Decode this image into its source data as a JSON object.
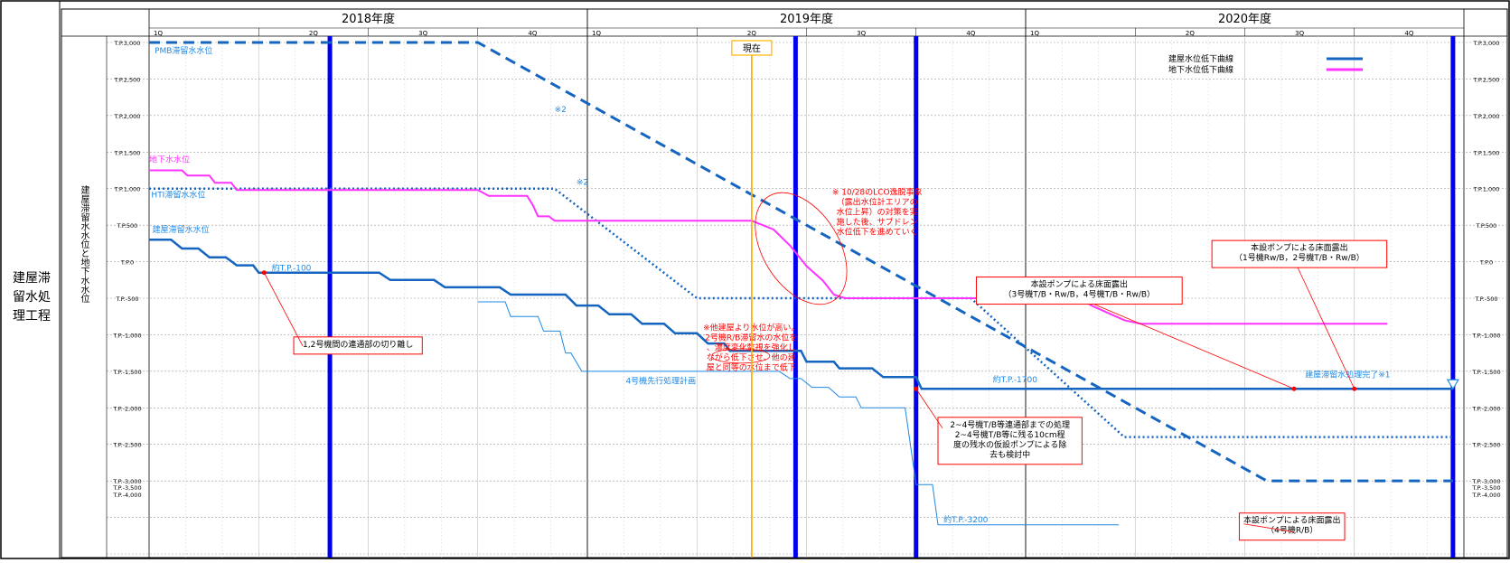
{
  "row_label_lines": [
    "建屋滞",
    "留水処",
    "理工程"
  ],
  "y_axis_title": "建屋滞留水水位と地下水水位",
  "years": [
    {
      "label": "2018年度",
      "quarters": [
        "1Q",
        "2Q",
        "3Q",
        "4Q"
      ]
    },
    {
      "label": "2019年度",
      "quarters": [
        "1Q",
        "2Q",
        "3Q",
        "4Q"
      ]
    },
    {
      "label": "2020年度",
      "quarters": [
        "1Q",
        "2Q",
        "3Q",
        "4Q"
      ]
    }
  ],
  "legend": {
    "items": [
      {
        "label": "建屋水位低下曲線",
        "color": "#1565c0"
      },
      {
        "label": "地下水位低下曲線",
        "color": "#ff33ff"
      }
    ]
  },
  "now_label": "現在",
  "colors": {
    "building": "#1565c0",
    "groundwater": "#ff33ff",
    "milestone": "#0000ee",
    "now": "#ffb300",
    "annotation": "#ff0000",
    "series_label": "#1e88e5"
  },
  "chart_data": {
    "type": "line",
    "x_unit": "quarter index from 2018年度 1Q (0.0 = start of FY2018, 12.0 = end of FY2020)",
    "x_range": [
      0,
      12
    ],
    "y_range": [
      -4000,
      3000
    ],
    "y_ticks": [
      {
        "label": "T.P.3,000",
        "value": 3000
      },
      {
        "label": "T.P.2,500",
        "value": 2500
      },
      {
        "label": "T.P.2,000",
        "value": 2000
      },
      {
        "label": "T.P.1,500",
        "value": 1500
      },
      {
        "label": "T.P.1,000",
        "value": 1000
      },
      {
        "label": "T.P.500",
        "value": 500
      },
      {
        "label": "T.P.0",
        "value": 0
      },
      {
        "label": "T.P.-500",
        "value": -500
      },
      {
        "label": "T.P.-1,000",
        "value": -1000
      },
      {
        "label": "T.P.-1,500",
        "value": -1500
      },
      {
        "label": "T.P.-2,000",
        "value": -2000
      },
      {
        "label": "T.P.-2,500",
        "value": -2500
      },
      {
        "label": "T.P.-3,000",
        "value": -3000
      },
      {
        "label": "T.P.-3,500",
        "value": -3500
      },
      {
        "label": "T.P.-4,000",
        "value": -4000
      }
    ],
    "grid": true,
    "legend_position": "top-right",
    "now_x": 5.5,
    "milestones_x": [
      1.65,
      5.9,
      7.0,
      11.9
    ],
    "series": [
      {
        "name": "PMB滞留水水位",
        "color": "#1565c0",
        "style": "dashed",
        "width": 3,
        "points": [
          [
            0,
            3000
          ],
          [
            3.0,
            3000
          ],
          [
            10.2,
            -3000
          ],
          [
            11.9,
            -3000
          ]
        ]
      },
      {
        "name": "HTI滞留水水位",
        "color": "#1565c0",
        "style": "dotted",
        "width": 2.5,
        "points": [
          [
            0,
            1000
          ],
          [
            3.7,
            1000
          ],
          [
            5.0,
            -500
          ],
          [
            7.5,
            -500
          ],
          [
            8.9,
            -2400
          ],
          [
            11.9,
            -2400
          ]
        ]
      },
      {
        "name": "地下水水位",
        "color": "#ff33ff",
        "style": "solid",
        "width": 2,
        "points": [
          [
            0,
            1250
          ],
          [
            0.3,
            1250
          ],
          [
            0.35,
            1180
          ],
          [
            0.55,
            1180
          ],
          [
            0.6,
            1080
          ],
          [
            0.75,
            1080
          ],
          [
            0.8,
            980
          ],
          [
            3.0,
            980
          ],
          [
            3.1,
            900
          ],
          [
            3.45,
            900
          ],
          [
            3.5,
            780
          ],
          [
            3.55,
            620
          ],
          [
            3.65,
            620
          ],
          [
            3.7,
            560
          ],
          [
            5.5,
            560
          ],
          [
            5.7,
            440
          ],
          [
            5.85,
            220
          ],
          [
            6.0,
            -60
          ],
          [
            6.15,
            -260
          ],
          [
            6.25,
            -450
          ],
          [
            6.35,
            -500
          ],
          [
            8.5,
            -500
          ],
          [
            8.6,
            -600
          ],
          [
            8.75,
            -700
          ],
          [
            8.9,
            -800
          ],
          [
            9.05,
            -850
          ],
          [
            11.3,
            -850
          ]
        ]
      },
      {
        "name": "建屋滞留水水位",
        "color": "#1565c0",
        "style": "solid",
        "width": 2.5,
        "points": [
          [
            0,
            300
          ],
          [
            0.2,
            300
          ],
          [
            0.3,
            180
          ],
          [
            0.45,
            180
          ],
          [
            0.55,
            60
          ],
          [
            0.7,
            60
          ],
          [
            0.8,
            -50
          ],
          [
            0.95,
            -50
          ],
          [
            1.0,
            -150
          ],
          [
            2.1,
            -150
          ],
          [
            2.2,
            -250
          ],
          [
            2.6,
            -250
          ],
          [
            2.7,
            -350
          ],
          [
            3.2,
            -350
          ],
          [
            3.3,
            -450
          ],
          [
            3.8,
            -450
          ],
          [
            3.9,
            -600
          ],
          [
            4.1,
            -600
          ],
          [
            4.2,
            -720
          ],
          [
            4.4,
            -720
          ],
          [
            4.5,
            -850
          ],
          [
            4.7,
            -850
          ],
          [
            4.8,
            -980
          ],
          [
            5.0,
            -980
          ],
          [
            5.1,
            -1120
          ],
          [
            5.25,
            -1120
          ],
          [
            5.3,
            -1220
          ],
          [
            5.95,
            -1220
          ],
          [
            6.0,
            -1370
          ],
          [
            6.25,
            -1370
          ],
          [
            6.3,
            -1460
          ],
          [
            6.6,
            -1460
          ],
          [
            6.7,
            -1580
          ],
          [
            7.0,
            -1580
          ],
          [
            7.05,
            -1740
          ],
          [
            7.2,
            -1740
          ],
          [
            11.9,
            -1740
          ]
        ]
      },
      {
        "name": "4号機先行処理計画",
        "color": "#1e88e5",
        "style": "solid",
        "width": 1,
        "points": [
          [
            3.0,
            -550
          ],
          [
            3.25,
            -550
          ],
          [
            3.3,
            -750
          ],
          [
            3.55,
            -750
          ],
          [
            3.6,
            -950
          ],
          [
            3.75,
            -950
          ],
          [
            3.8,
            -1250
          ],
          [
            3.85,
            -1250
          ],
          [
            3.95,
            -1500
          ],
          [
            5.75,
            -1500
          ],
          [
            5.85,
            -1600
          ],
          [
            5.95,
            -1600
          ],
          [
            6.05,
            -1720
          ],
          [
            6.2,
            -1720
          ],
          [
            6.3,
            -1850
          ],
          [
            6.45,
            -1850
          ],
          [
            6.5,
            -2000
          ],
          [
            6.9,
            -2000
          ],
          [
            7.0,
            -3050
          ],
          [
            7.15,
            -3050
          ],
          [
            7.2,
            -3600
          ],
          [
            8.85,
            -3600
          ]
        ]
      }
    ],
    "labels": [
      {
        "text": "PMB滞留水水位",
        "x": 0.05,
        "y": 2850
      },
      {
        "text": "地下水水位",
        "x": 0.0,
        "y": 1360
      },
      {
        "text": "HTI滞留水水位",
        "x": 0.02,
        "y": 880
      },
      {
        "text": "建屋滞留水水位",
        "x": 0.03,
        "y": 400
      },
      {
        "text": "約T.P.-100",
        "x": 1.12,
        "y": -120
      },
      {
        "text": "約T.P.-1700",
        "x": 7.7,
        "y": -1650
      },
      {
        "text": "約T.P.-3200",
        "x": 7.25,
        "y": -3570
      },
      {
        "text": "4号機先行処理計画",
        "x": 4.35,
        "y": -1670
      },
      {
        "text": "建屋滞留水処理完了※1",
        "x": 10.55,
        "y": -1580
      },
      {
        "text": "※2",
        "x": 3.7,
        "y": 2050
      },
      {
        "text": "※2",
        "x": 3.9,
        "y": 1050
      }
    ],
    "annotations": [
      {
        "lines": [
          "※ 10/28のLCO逸脱事象",
          "（露出水位計エリアの",
          "水位上昇）の対策を実",
          "施した後、サブドレン",
          "水位低下を進めていく"
        ],
        "x": 6.15,
        "y": 1050,
        "boxed": false
      },
      {
        "lines": [
          "※他建屋より水位が高い。",
          "2号機R/B滞留水の水位を",
          "、濃度変化監視を強化し",
          "ながら低下させ、他の建",
          "屋と同等の水位まで低下"
        ],
        "x": 5.0,
        "y": -800,
        "boxed": false
      },
      {
        "lines": [
          "1,2号機間の連通部の切り離し"
        ],
        "x": 1.32,
        "y": -1030,
        "boxed": true
      },
      {
        "lines": [
          "本設ポンプによる床面露出",
          "（1号機Rw/B，2号機T/B・Rw/B）"
        ],
        "x": 9.7,
        "y": 290,
        "boxed": true
      },
      {
        "lines": [
          "本設ポンプによる床面露出",
          "（3号機T/B・Rw/B，4号機T/B・Rw/B）"
        ],
        "x": 7.55,
        "y": -210,
        "boxed": true
      },
      {
        "lines": [
          "2~4号機T/B等連通部までの処理",
          "2~4号機T/B等に残る10cm程",
          "度の残水の仮設ポンプによる除",
          "去も検討中"
        ],
        "x": 7.2,
        "y": -2130,
        "boxed": true
      },
      {
        "lines": [
          "本設ポンプによる床面露出",
          "（4号機R/B）"
        ],
        "x": 9.95,
        "y": -3440,
        "boxed": true
      }
    ]
  }
}
